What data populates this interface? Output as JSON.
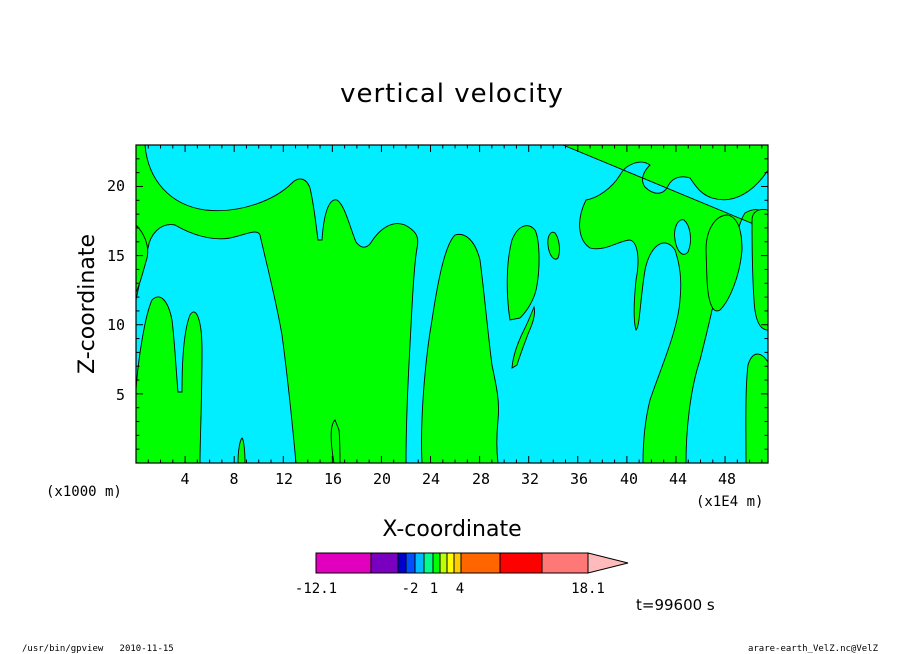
{
  "chart_data": {
    "type": "heatmap",
    "title": "vertical velocity",
    "xlabel": "X-coordinate",
    "ylabel": "Z-coordinate",
    "x_unit_left": "(x1000 m)",
    "x_unit_right": "(x1E4 m)",
    "xlim": [
      0,
      51.5
    ],
    "ylim": [
      0,
      23
    ],
    "x_ticks": [
      "4",
      "8",
      "12",
      "16",
      "20",
      "24",
      "28",
      "32",
      "36",
      "40",
      "44",
      "48"
    ],
    "y_ticks": [
      "5",
      "10",
      "15",
      "20"
    ],
    "fill_colors": {
      "positive": "#00ff00",
      "negative": "#00eeff"
    },
    "colorbar": {
      "min_label": "-12.1",
      "max_label": "18.1",
      "tick_labels": [
        "-2",
        "1",
        "4"
      ],
      "colors": [
        "#e100be",
        "#7a00c0",
        "#0000cc",
        "#0050ff",
        "#00bbff",
        "#00ff88",
        "#00ff00",
        "#bbff00",
        "#ffff00",
        "#ffcc00",
        "#ff6600",
        "#ff0000",
        "#ff7777",
        "#ffbbbb"
      ]
    },
    "time_label": "t=99600 s"
  },
  "footer": {
    "left": "/usr/bin/gpview   2010-11-15",
    "right": "arare-earth_VelZ.nc@VelZ"
  }
}
